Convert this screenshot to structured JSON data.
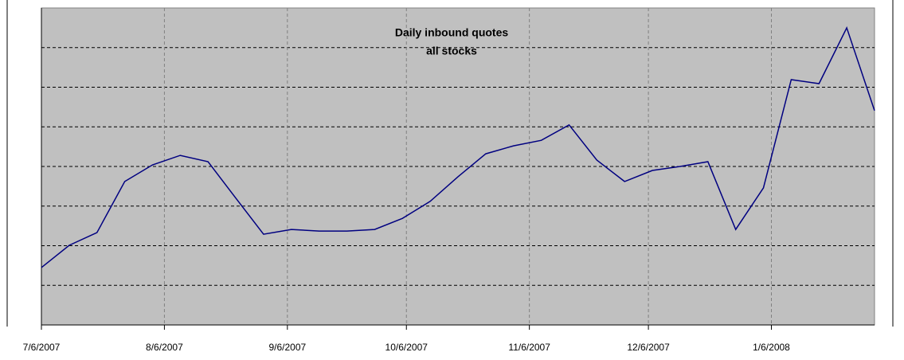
{
  "chart_data": {
    "type": "line",
    "title": [
      "Daily inbound quotes",
      "all stocks"
    ],
    "x": [
      "7/6/2007",
      "7/13/2007",
      "7/20/2007",
      "7/27/2007",
      "8/3/2007",
      "8/10/2007",
      "8/17/2007",
      "8/24/2007",
      "8/31/2007",
      "9/7/2007",
      "9/14/2007",
      "9/21/2007",
      "9/28/2007",
      "10/5/2007",
      "10/12/2007",
      "10/19/2007",
      "10/26/2007",
      "11/2/2007",
      "11/9/2007",
      "11/16/2007",
      "11/23/2007",
      "11/30/2007",
      "12/7/2007",
      "12/14/2007",
      "12/21/2007",
      "12/28/2007",
      "1/4/2008",
      "1/11/2008",
      "1/18/2008",
      "1/25/2008",
      "2/1/2008"
    ],
    "series": [
      {
        "color": "#000080",
        "values": [
          1.45,
          2.01,
          2.33,
          3.62,
          4.04,
          4.28,
          4.12,
          3.2,
          2.29,
          2.41,
          2.37,
          2.37,
          2.41,
          2.69,
          3.12,
          3.74,
          4.32,
          4.52,
          4.66,
          5.05,
          4.16,
          3.62,
          3.9,
          4.0,
          4.12,
          2.41,
          3.46,
          6.19,
          6.09,
          7.5,
          5.41
        ]
      }
    ],
    "xlim": [
      "7/6/2007",
      "2/1/2008"
    ],
    "xticks": [
      "7/6/2007",
      "8/6/2007",
      "9/6/2007",
      "10/6/2007",
      "11/6/2007",
      "12/6/2007",
      "1/6/2008"
    ],
    "ylim": [
      0,
      8
    ],
    "ygrid": [
      1,
      2,
      3,
      4,
      5,
      6,
      7
    ],
    "grid": true,
    "plot_color": "#c0c0c0"
  }
}
